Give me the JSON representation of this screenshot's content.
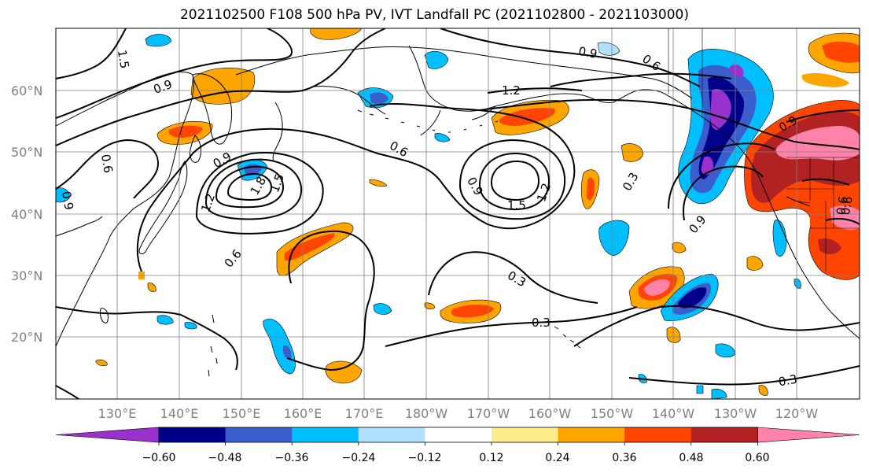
{
  "title": "2021102500 F108 500 hPa PV, IVT Landfall PC (2021102800 - 2021103000)",
  "lat_ticks": [
    "60°N",
    "50°N",
    "40°N",
    "30°N",
    "20°N"
  ],
  "lon_ticks": [
    "130°E",
    "140°E",
    "150°E",
    "160°E",
    "170°E",
    "180°W",
    "170°W",
    "160°W",
    "150°W",
    "140°W",
    "130°W",
    "120°W"
  ],
  "colorbar": {
    "colors": [
      "#9932cc",
      "#00008b",
      "#3a5fcd",
      "#00bfff",
      "#b0e2ff",
      "#ffffff",
      "#ffec8b",
      "#ffa500",
      "#ff4500",
      "#b22222",
      "#ff82ab"
    ],
    "tick_labels": [
      "−0.60",
      "−0.48",
      "−0.36",
      "−0.24",
      "−0.12",
      "0.12",
      "0.24",
      "0.36",
      "0.48",
      "0.60"
    ]
  },
  "contour_labels": [
    "1.5",
    "0.9",
    "0.9",
    "0.6",
    "1.2",
    "0.6",
    "0.9",
    "1.8",
    "1.5",
    "1.2",
    "0.9",
    "1.5",
    "1.2",
    "0.3",
    "0.9",
    "0.9",
    "0.6",
    "0.6",
    "0.3",
    "0.3",
    "0.3",
    "0.9",
    "0.6",
    "0.6"
  ]
}
